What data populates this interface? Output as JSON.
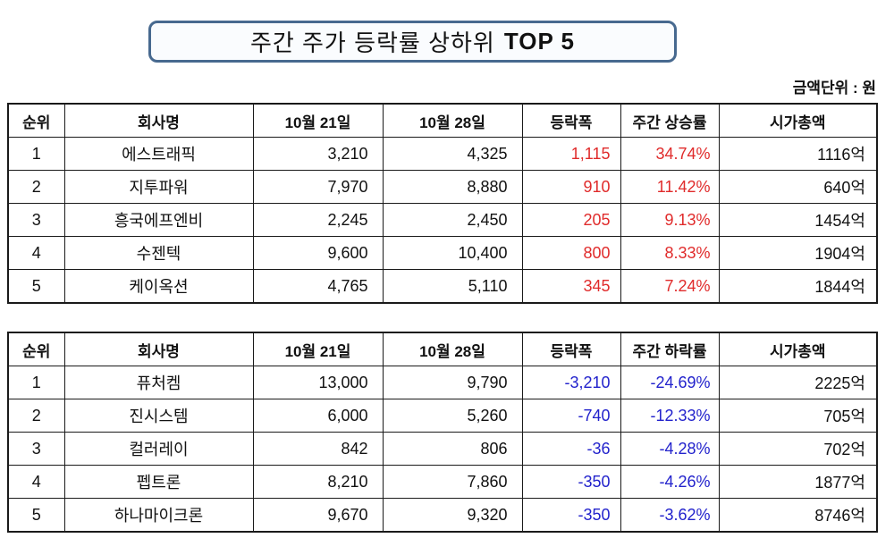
{
  "title": {
    "main": "주간 주가 등락률 상하위",
    "strong": "TOP 5"
  },
  "unit_label": "금액단위 : 원",
  "colors": {
    "up": "#e02b2b",
    "down": "#2222cc",
    "title_border": "#47698f"
  },
  "chart_data": [
    {
      "type": "table",
      "direction": "up",
      "columns": [
        "순위",
        "회사명",
        "10월 21일",
        "10월 28일",
        "등락폭",
        "주간 상승률",
        "시가총액"
      ],
      "rows": [
        [
          "1",
          "에스트래픽",
          "3,210",
          "4,325",
          "1,115",
          "34.74%",
          "1116억"
        ],
        [
          "2",
          "지투파워",
          "7,970",
          "8,880",
          "910",
          "11.42%",
          "640억"
        ],
        [
          "3",
          "흥국에프엔비",
          "2,245",
          "2,450",
          "205",
          "9.13%",
          "1454억"
        ],
        [
          "4",
          "수젠텍",
          "9,600",
          "10,400",
          "800",
          "8.33%",
          "1904억"
        ],
        [
          "5",
          "케이옥션",
          "4,765",
          "5,110",
          "345",
          "7.24%",
          "1844억"
        ]
      ]
    },
    {
      "type": "table",
      "direction": "down",
      "columns": [
        "순위",
        "회사명",
        "10월 21일",
        "10월 28일",
        "등락폭",
        "주간 하락률",
        "시가총액"
      ],
      "rows": [
        [
          "1",
          "퓨처켐",
          "13,000",
          "9,790",
          "-3,210",
          "-24.69%",
          "2225억"
        ],
        [
          "2",
          "진시스템",
          "6,000",
          "5,260",
          "-740",
          "-12.33%",
          "705억"
        ],
        [
          "3",
          "컬러레이",
          "842",
          "806",
          "-36",
          "-4.28%",
          "702억"
        ],
        [
          "4",
          "펩트론",
          "8,210",
          "7,860",
          "-350",
          "-4.26%",
          "1877억"
        ],
        [
          "5",
          "하나마이크론",
          "9,670",
          "9,320",
          "-350",
          "-3.62%",
          "8746억"
        ]
      ]
    }
  ]
}
